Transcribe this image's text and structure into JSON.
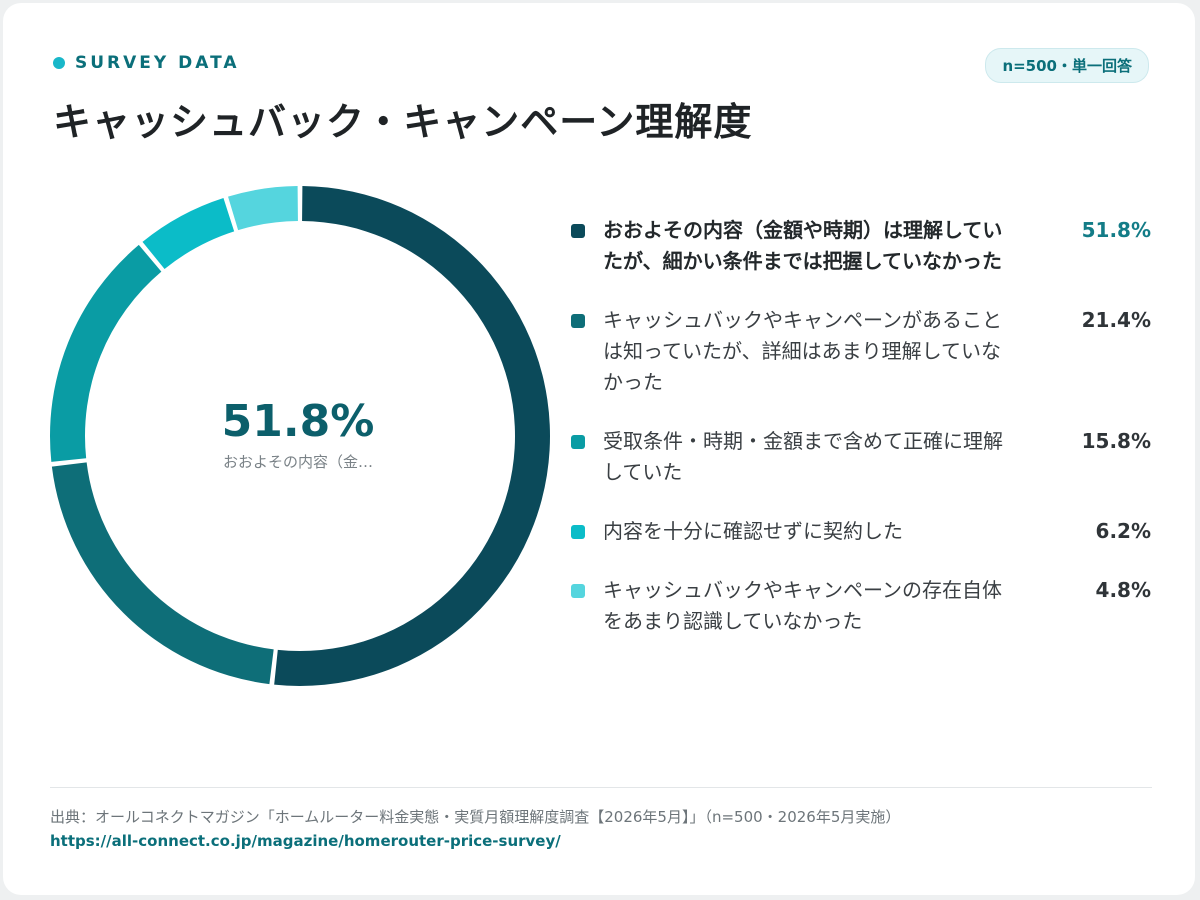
{
  "header": {
    "eyebrow": "SURVEY DATA",
    "title": "キャッシュバック・キャンペーン理解度",
    "badge": "n=500・単一回答"
  },
  "center": {
    "value": "51.8%",
    "label": "おおよその内容（金…"
  },
  "chart_data": {
    "type": "pie",
    "categories": [
      "おおよその内容（金額や時期）は理解していたが、細かい条件までは把握していなかった",
      "キャッシュバックやキャンペーンがあることは知っていたが、詳細はあまり理解していなかった",
      "受取条件・時期・金額まで含めて正確に理解していた",
      "内容を十分に確認せずに契約した",
      "キャッシュバックやキャンペーンの存在自体をあまり認識していなかった"
    ],
    "values": [
      51.8,
      21.4,
      15.8,
      6.2,
      4.8
    ],
    "value_labels": [
      "51.8%",
      "21.4%",
      "15.8%",
      "6.2%",
      "4.8%"
    ],
    "colors": [
      "#0b4a5a",
      "#0e6e78",
      "#0a9ca4",
      "#0bbcc8",
      "#55d5de"
    ],
    "donut": true,
    "legend_position": "right"
  },
  "footer": {
    "source": "出典：オールコネクトマガジン「ホームルーター料金実態・実質月額理解度調査【2026年5月】」（n=500・2026年5月実施）",
    "url": "https://all-connect.co.jp/magazine/homerouter-price-survey/"
  }
}
